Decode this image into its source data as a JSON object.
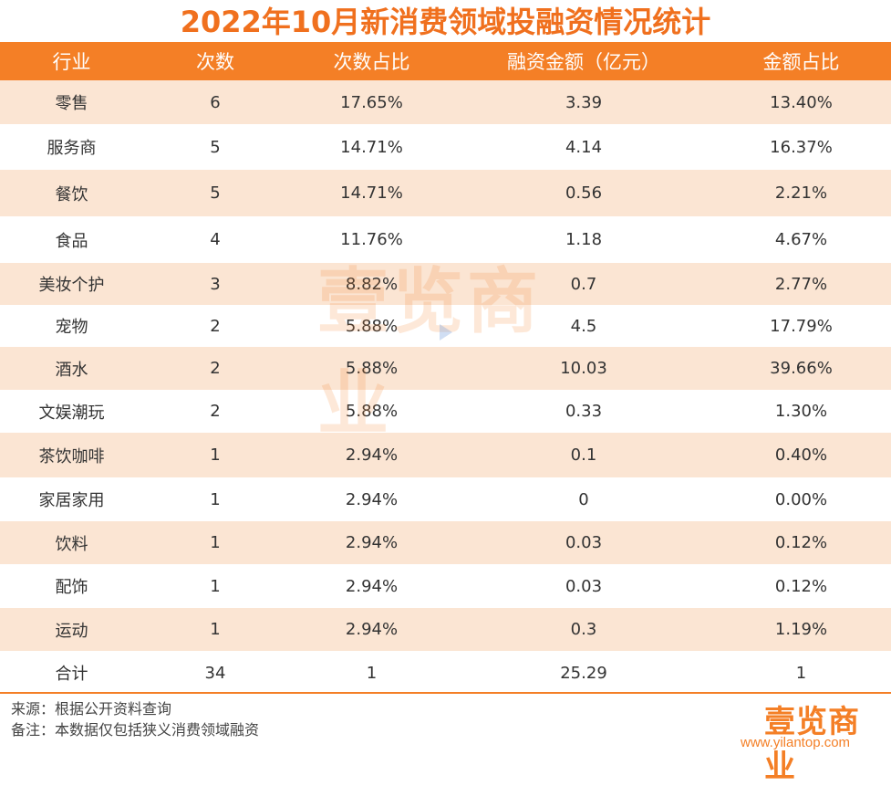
{
  "title": "2022年10月新消费领域投融资情况统计",
  "columns": [
    "行业",
    "次数",
    "次数占比",
    "融资金额（亿元）",
    "金额占比"
  ],
  "rows": [
    [
      "零售",
      "6",
      "17.65%",
      "3.39",
      "13.40%"
    ],
    [
      "服务商",
      "5",
      "14.71%",
      "4.14",
      "16.37%"
    ],
    [
      "餐饮",
      "5",
      "14.71%",
      "0.56",
      "2.21%"
    ],
    [
      "食品",
      "4",
      "11.76%",
      "1.18",
      "4.67%"
    ],
    [
      "美妆个护",
      "3",
      "8.82%",
      "0.7",
      "2.77%"
    ],
    [
      "宠物",
      "2",
      "5.88%",
      "4.5",
      "17.79%"
    ],
    [
      "酒水",
      "2",
      "5.88%",
      "10.03",
      "39.66%"
    ],
    [
      "文娱潮玩",
      "2",
      "5.88%",
      "0.33",
      "1.30%"
    ],
    [
      "茶饮咖啡",
      "1",
      "2.94%",
      "0.1",
      "0.40%"
    ],
    [
      "家居家用",
      "1",
      "2.94%",
      "0",
      "0.00%"
    ],
    [
      "饮料",
      "1",
      "2.94%",
      "0.03",
      "0.12%"
    ],
    [
      "配饰",
      "1",
      "2.94%",
      "0.03",
      "0.12%"
    ],
    [
      "运动",
      "1",
      "2.94%",
      "0.3",
      "1.19%"
    ],
    [
      "合计",
      "34",
      "1",
      "25.29",
      "1"
    ]
  ],
  "footer": {
    "source": "来源：根据公开资料查询",
    "note": "备注：本数据仅包括狭义消费领域融资"
  },
  "watermark": "壹览商业",
  "logo": {
    "text": "壹览商业",
    "url": "www.yilantop.com"
  },
  "colors": {
    "accent": "#f47f26",
    "title": "#f0701e",
    "stripe": "#fbe5d3"
  }
}
